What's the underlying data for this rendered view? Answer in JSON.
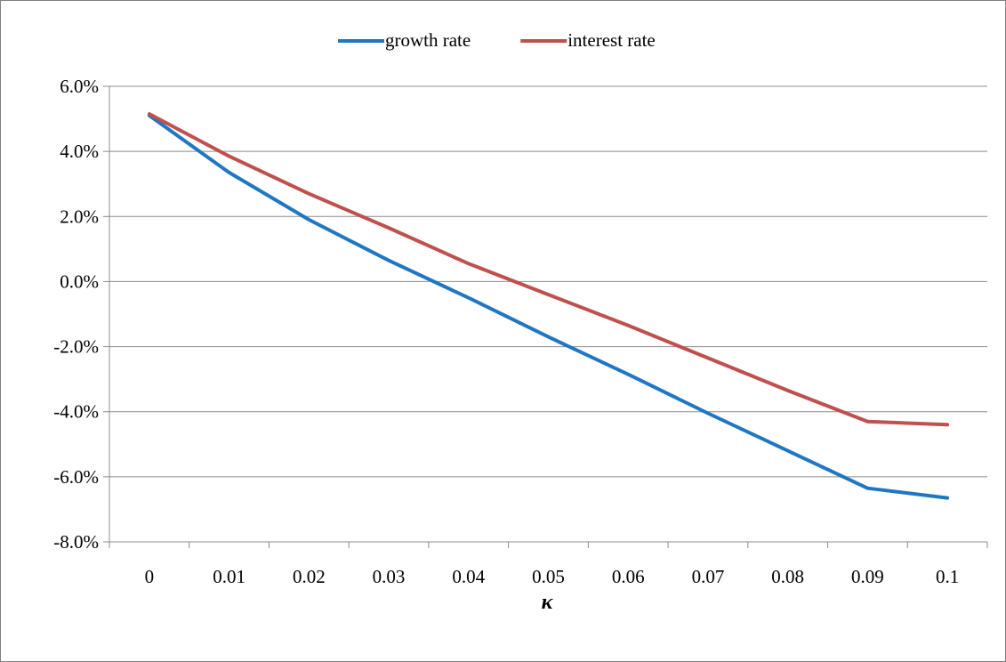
{
  "chart_data": {
    "type": "line",
    "title": "",
    "xlabel": "κ",
    "ylabel": "",
    "x": [
      0,
      0.01,
      0.02,
      0.03,
      0.04,
      0.05,
      0.06,
      0.07,
      0.08,
      0.09,
      0.1
    ],
    "x_tick_labels": [
      "0",
      "0.01",
      "0.02",
      "0.03",
      "0.04",
      "0.05",
      "0.06",
      "0.07",
      "0.08",
      "0.09",
      "0.1"
    ],
    "ylim": [
      -0.08,
      0.06
    ],
    "y_ticks": [
      -0.08,
      -0.06,
      -0.04,
      -0.02,
      0,
      0.02,
      0.04,
      0.06
    ],
    "y_tick_labels": [
      "-8.0%",
      "-6.0%",
      "-4.0%",
      "-2.0%",
      "0.0%",
      "2.0%",
      "4.0%",
      "6.0%"
    ],
    "grid": true,
    "legend_position": "top",
    "series": [
      {
        "name": "growth rate",
        "color": "#1f77c4",
        "values": [
          0.051,
          0.0335,
          0.019,
          0.0065,
          -0.005,
          -0.017,
          -0.0285,
          -0.0405,
          -0.052,
          -0.0635,
          -0.0665
        ]
      },
      {
        "name": "interest rate",
        "color": "#c0504d",
        "values": [
          0.0515,
          0.0385,
          0.027,
          0.0165,
          0.0055,
          -0.004,
          -0.0135,
          -0.0235,
          -0.0335,
          -0.043,
          -0.044
        ]
      }
    ]
  }
}
